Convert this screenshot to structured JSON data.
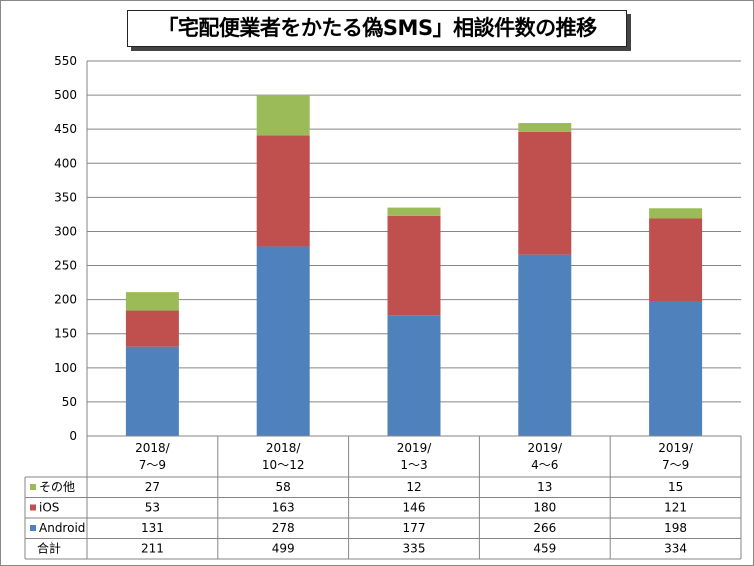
{
  "chart_data": {
    "type": "bar",
    "stacked": true,
    "title": "「宅配便業者をかたる偽SMS」相談件数の推移",
    "categories": [
      [
        "2018/",
        "7～9"
      ],
      [
        "2018/",
        "10～12"
      ],
      [
        "2019/",
        "1～3"
      ],
      [
        "2019/",
        "4～6"
      ],
      [
        "2019/",
        "7～9"
      ]
    ],
    "series": [
      {
        "name": "Android",
        "color": "#4f81bd",
        "values": [
          131,
          278,
          177,
          266,
          198
        ]
      },
      {
        "name": "iOS",
        "color": "#c0504d",
        "values": [
          53,
          163,
          146,
          180,
          121
        ]
      },
      {
        "name": "その他",
        "color": "#9bbb59",
        "values": [
          27,
          58,
          12,
          13,
          15
        ]
      }
    ],
    "totals_label": "合計",
    "totals": [
      211,
      499,
      335,
      459,
      334
    ],
    "ylim": [
      0,
      550
    ],
    "yticks": [
      "0",
      "50",
      "100",
      "150",
      "200",
      "250",
      "300",
      "350",
      "400",
      "450",
      "500",
      "550"
    ],
    "grid": true,
    "legend": "data-table"
  }
}
